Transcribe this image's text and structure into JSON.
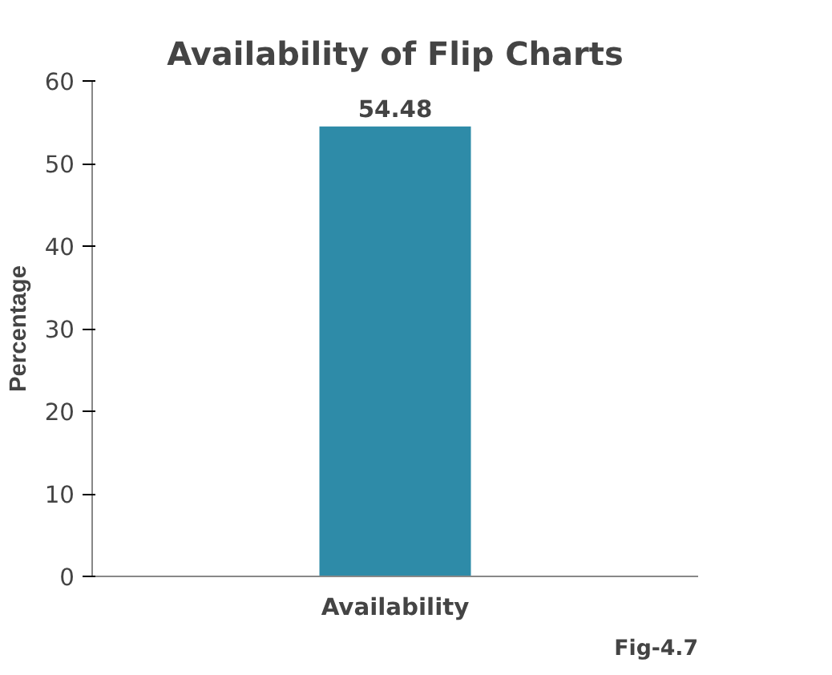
{
  "chart_data": {
    "type": "bar",
    "title": "Availability of Flip Charts",
    "ylabel": "Percentage",
    "categories": [
      "Availability"
    ],
    "values": [
      54.48
    ],
    "color": "#2e8ba8",
    "ylim": [
      0,
      60
    ],
    "yticks": [
      0,
      10,
      20,
      30,
      40,
      50,
      60
    ],
    "data_labels": true,
    "annotations": [
      "Fig-4.7"
    ]
  }
}
